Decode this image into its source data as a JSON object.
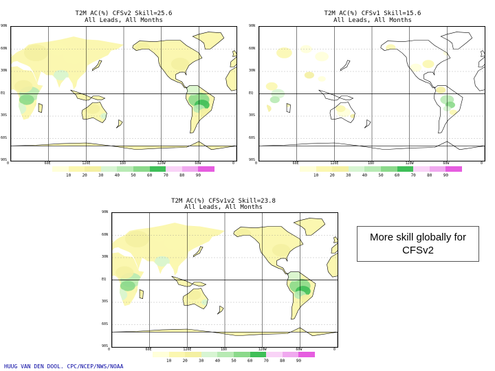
{
  "maps": [
    {
      "id": "cfsv2",
      "title": "T2M AC(%) CFSv2 Skill=25.6",
      "subtitle": "All Leads, All Months",
      "frame": "tl"
    },
    {
      "id": "cfsv1",
      "title": "T2M AC(%) CFSv1 Skill=15.6",
      "subtitle": "All Leads, All Months",
      "frame": "tr"
    },
    {
      "id": "cfsv1v2",
      "title": "T2M AC(%) CFSv1v2 Skill=23.8",
      "subtitle": "All Leads, All Months",
      "frame": "bc"
    }
  ],
  "lat_ticks": [
    "90N",
    "60N",
    "30N",
    "EQ",
    "30S",
    "60S",
    "90S"
  ],
  "lon_ticks": [
    "0",
    "60E",
    "120E",
    "180",
    "120W",
    "60W",
    "0"
  ],
  "colorbar": {
    "labels": [
      "10",
      "20",
      "30",
      "40",
      "50",
      "60",
      "70",
      "80",
      "90"
    ],
    "colors": [
      "#ffffd9",
      "#fbf7b0",
      "#f4f0a2",
      "#d7f5d2",
      "#b8eab4",
      "#8bd98b",
      "#3fbf58",
      "#f9d3f7",
      "#f0a9ef",
      "#e65de0"
    ]
  },
  "callout": {
    "line1": "More skill globally for",
    "line2": "CFSv2"
  },
  "credit": "HUUG VAN DEN DOOL. CPC/NCEP/NWS/NOAA"
}
